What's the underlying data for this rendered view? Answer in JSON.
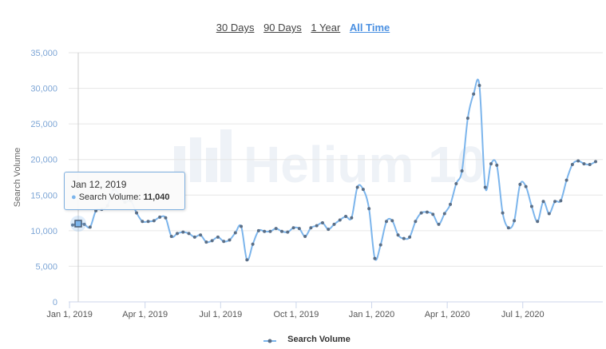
{
  "range_buttons": [
    {
      "label": "30 Days"
    },
    {
      "label": "90 Days"
    },
    {
      "label": "1 Year"
    },
    {
      "label": "All Time",
      "active": true
    }
  ],
  "watermark": "Helium 10",
  "tooltip": {
    "date": "Jan 12, 2019",
    "series": "Search Volume",
    "value": "11,040"
  },
  "colors": {
    "line": "#7cb5ec",
    "points": "#5a6e86",
    "accent": "#4a90e2"
  },
  "chart_data": {
    "type": "line",
    "title": "",
    "xlabel": "",
    "ylabel": "Search Volume",
    "ylim": [
      0,
      35000
    ],
    "yticks": [
      "0",
      "5,000",
      "10,000",
      "15,000",
      "20,000",
      "25,000",
      "30,000",
      "35,000"
    ],
    "ytick_values": [
      0,
      5000,
      10000,
      15000,
      20000,
      25000,
      30000,
      35000
    ],
    "xticks": [
      "Jan 1, 2019",
      "Apr 1, 2019",
      "Jul 1, 2019",
      "Oct 1, 2019",
      "Jan 1, 2020",
      "Apr 1, 2020",
      "Jul 1, 2020"
    ],
    "xtick_weeks": [
      0,
      13,
      26,
      39,
      52,
      65,
      78
    ],
    "x_start": "Jan 5, 2019",
    "x_interval": "weekly",
    "grid": true,
    "legend": "bottom-center",
    "series": [
      {
        "name": "Search Volume",
        "values": [
          10800,
          11040,
          10900,
          10500,
          12800,
          13000,
          13500,
          15800,
          15000,
          14000,
          14200,
          12500,
          11300,
          11300,
          11400,
          11900,
          11800,
          9200,
          9600,
          9800,
          9600,
          9100,
          9400,
          8400,
          8600,
          9100,
          8500,
          8700,
          9700,
          10600,
          5900,
          8100,
          10000,
          9900,
          9900,
          10300,
          9900,
          9800,
          10400,
          10300,
          9200,
          10400,
          10700,
          11100,
          10200,
          10900,
          11500,
          12000,
          11800,
          16100,
          15800,
          13100,
          6100,
          8000,
          11300,
          11400,
          9400,
          8900,
          9100,
          11300,
          12500,
          12600,
          12300,
          10900,
          12400,
          13700,
          16600,
          18400,
          25800,
          29200,
          30400,
          16100,
          19400,
          19200,
          12500,
          10400,
          11400,
          16500,
          16200,
          13400,
          11300,
          14100,
          12400,
          14100,
          14200,
          17100,
          19300,
          19800,
          19400,
          19300,
          19700
        ]
      }
    ]
  }
}
